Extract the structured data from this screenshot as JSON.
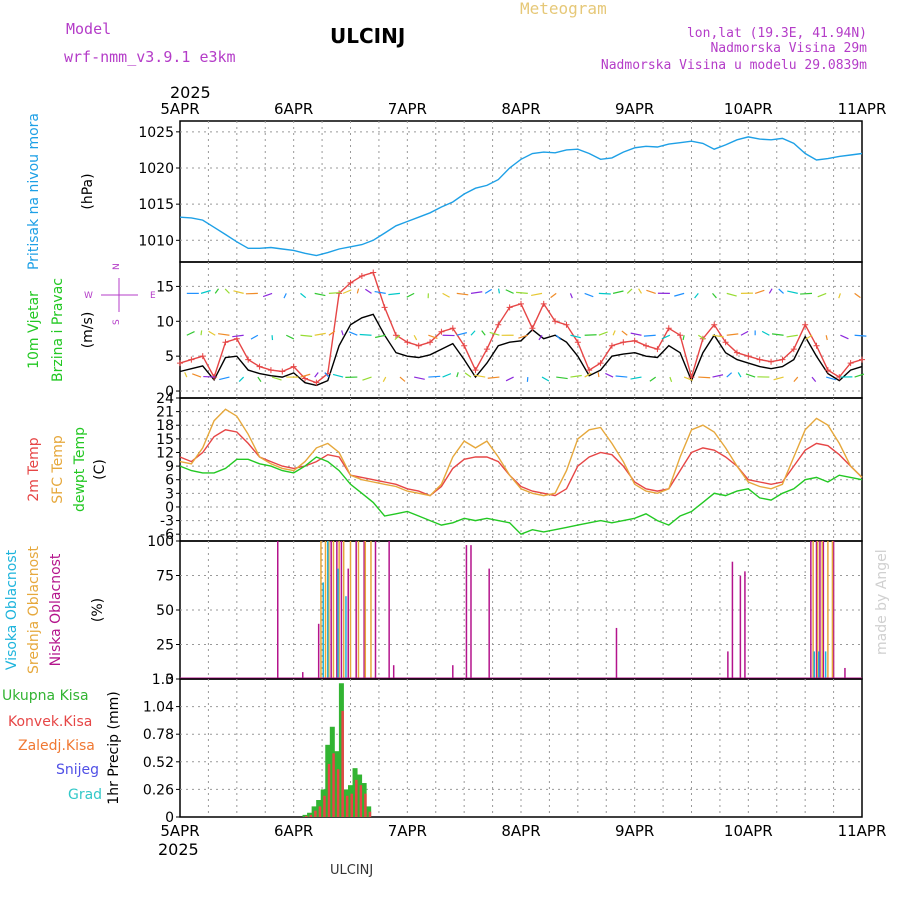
{
  "header": {
    "model_label": "Model",
    "model_name": "wrf-nmm_v3.9.1 e3km",
    "station": "ULCINJ",
    "chart_title": "Meteogram",
    "lonlat": "lon,lat (19.3E, 41.94N)",
    "elevation": "Nadmorska Visina 29m",
    "model_elevation": "Nadmorska Visina u modelu 29.0839m",
    "year": "2025",
    "footer_station": "ULCINJ",
    "credit": "made by Angel"
  },
  "colors": {
    "pressure": "#1ea0e6",
    "temp2m": "#e64646",
    "sfctemp": "#e6a83c",
    "dewpt": "#23c823",
    "wind_speed": "#000000",
    "wind_gust": "#e64646",
    "cloud_high": "#1eb4dc",
    "cloud_mid": "#e6a83c",
    "cloud_low": "#b4148c",
    "rain_total": "#32b432",
    "rain_conv": "#e64646",
    "title_gold": "#e6c878",
    "purple": "#b43cc8"
  },
  "time_axis": {
    "labels": [
      "5APR",
      "6APR",
      "7APR",
      "8APR",
      "9APR",
      "10APR",
      "11APR"
    ],
    "days": 6
  },
  "chart_data": [
    {
      "type": "line",
      "id": "pressure",
      "ylabel": [
        "Pritisak na nivou mora",
        "(hPa)"
      ],
      "yticks": [
        1010,
        1015,
        1020,
        1025
      ],
      "ylim": [
        1007,
        1026.5
      ],
      "series": [
        {
          "name": "Pressure",
          "x": [
            0,
            0.1,
            0.2,
            0.3,
            0.4,
            0.5,
            0.6,
            0.7,
            0.8,
            0.9,
            1.0,
            1.1,
            1.2,
            1.3,
            1.4,
            1.5,
            1.6,
            1.7,
            1.8,
            1.9,
            2.0,
            2.1,
            2.2,
            2.3,
            2.4,
            2.5,
            2.6,
            2.7,
            2.8,
            2.9,
            3.0,
            3.1,
            3.2,
            3.3,
            3.4,
            3.5,
            3.6,
            3.7,
            3.8,
            3.9,
            4.0,
            4.1,
            4.2,
            4.3,
            4.4,
            4.5,
            4.6,
            4.7,
            4.8,
            4.9,
            5.0,
            5.1,
            5.2,
            5.3,
            5.4,
            5.5,
            5.6,
            5.7,
            5.8,
            5.9,
            6.0
          ],
          "values": [
            1013.2,
            1013.1,
            1012.8,
            1011.8,
            1010.8,
            1009.8,
            1008.9,
            1008.9,
            1009.0,
            1008.8,
            1008.6,
            1008.2,
            1007.9,
            1008.3,
            1008.8,
            1009.1,
            1009.4,
            1010.0,
            1011.0,
            1012.0,
            1012.6,
            1013.2,
            1013.8,
            1014.6,
            1015.3,
            1016.4,
            1017.2,
            1017.6,
            1018.4,
            1020.0,
            1021.2,
            1022.0,
            1022.2,
            1022.1,
            1022.5,
            1022.6,
            1022.0,
            1021.2,
            1021.4,
            1022.2,
            1022.8,
            1023.0,
            1022.9,
            1023.3,
            1023.5,
            1023.7,
            1023.4,
            1022.6,
            1023.2,
            1023.9,
            1024.3,
            1024.0,
            1023.9,
            1024.1,
            1023.4,
            1022.0,
            1021.1,
            1021.3,
            1021.6,
            1021.8,
            1022.0
          ]
        }
      ]
    },
    {
      "type": "line",
      "id": "wind",
      "ylabel": [
        "10m Vjetar",
        "Brzina i Pravac",
        "(m/s)"
      ],
      "compass": {
        "n": "N",
        "s": "S",
        "e": "E",
        "w": "W"
      },
      "yticks": [
        0,
        5,
        10,
        15
      ],
      "ylim": [
        -1,
        18.5
      ],
      "series": [
        {
          "name": "Speed",
          "x": [
            0,
            0.1,
            0.2,
            0.3,
            0.4,
            0.5,
            0.6,
            0.7,
            0.8,
            0.9,
            1.0,
            1.1,
            1.2,
            1.3,
            1.4,
            1.5,
            1.6,
            1.7,
            1.8,
            1.9,
            2.0,
            2.1,
            2.2,
            2.3,
            2.4,
            2.5,
            2.6,
            2.7,
            2.8,
            2.9,
            3.0,
            3.1,
            3.2,
            3.3,
            3.4,
            3.5,
            3.6,
            3.7,
            3.8,
            3.9,
            4.0,
            4.1,
            4.2,
            4.3,
            4.4,
            4.5,
            4.6,
            4.7,
            4.8,
            4.9,
            5.0,
            5.1,
            5.2,
            5.3,
            5.4,
            5.5,
            5.6,
            5.7,
            5.8,
            5.9,
            6.0
          ],
          "values": [
            2.8,
            3.2,
            3.6,
            1.6,
            4.8,
            5.0,
            3.0,
            2.5,
            2.2,
            2.0,
            2.6,
            1.2,
            0.8,
            1.5,
            6.5,
            9.5,
            10.5,
            11.0,
            8.0,
            5.5,
            5.0,
            4.8,
            5.2,
            6.0,
            6.8,
            4.5,
            2.0,
            4.0,
            6.5,
            7.0,
            7.2,
            8.8,
            7.5,
            8.0,
            7.0,
            5.0,
            2.2,
            3.0,
            5.0,
            5.3,
            5.5,
            5.0,
            4.8,
            6.5,
            5.5,
            1.5,
            5.5,
            8.0,
            5.5,
            4.5,
            4.0,
            3.5,
            3.2,
            3.5,
            4.5,
            7.8,
            5.0,
            2.5,
            1.5,
            3.0,
            3.5
          ]
        },
        {
          "name": "Gust",
          "x": [
            0,
            0.1,
            0.2,
            0.3,
            0.4,
            0.5,
            0.6,
            0.7,
            0.8,
            0.9,
            1.0,
            1.1,
            1.2,
            1.3,
            1.4,
            1.5,
            1.6,
            1.7,
            1.8,
            1.9,
            2.0,
            2.1,
            2.2,
            2.3,
            2.4,
            2.5,
            2.6,
            2.7,
            2.8,
            2.9,
            3.0,
            3.1,
            3.2,
            3.3,
            3.4,
            3.5,
            3.6,
            3.7,
            3.8,
            3.9,
            4.0,
            4.1,
            4.2,
            4.3,
            4.4,
            4.5,
            4.6,
            4.7,
            4.8,
            4.9,
            5.0,
            5.1,
            5.2,
            5.3,
            5.4,
            5.5,
            5.6,
            5.7,
            5.8,
            5.9,
            6.0
          ],
          "values": [
            4.0,
            4.5,
            5.0,
            2.0,
            7.0,
            7.5,
            4.5,
            3.5,
            3.0,
            2.8,
            3.5,
            1.8,
            1.2,
            2.5,
            14.0,
            15.5,
            16.5,
            17.0,
            12.0,
            8.0,
            7.0,
            6.5,
            7.0,
            8.5,
            9.0,
            6.5,
            3.0,
            6.0,
            9.5,
            12.0,
            12.5,
            9.0,
            12.5,
            10.0,
            9.5,
            7.0,
            3.0,
            4.0,
            6.5,
            7.0,
            7.2,
            6.5,
            6.0,
            9.0,
            8.0,
            2.0,
            7.5,
            9.5,
            7.0,
            5.5,
            5.0,
            4.5,
            4.2,
            4.5,
            6.0,
            9.5,
            6.5,
            3.0,
            2.0,
            4.0,
            4.5
          ]
        }
      ]
    },
    {
      "type": "line",
      "id": "temperature",
      "ylabel": [
        "2m Temp",
        "SFC Temp",
        "dewpt Temp",
        "(C)"
      ],
      "yticks": [
        -6,
        -3,
        0,
        3,
        6,
        9,
        12,
        15,
        18,
        21,
        24
      ],
      "ylim": [
        -7.5,
        24
      ],
      "series": [
        {
          "name": "2m Temp",
          "x": [
            0,
            0.1,
            0.2,
            0.3,
            0.4,
            0.5,
            0.6,
            0.7,
            0.8,
            0.9,
            1.0,
            1.1,
            1.2,
            1.3,
            1.4,
            1.5,
            1.6,
            1.7,
            1.8,
            1.9,
            2.0,
            2.1,
            2.2,
            2.3,
            2.4,
            2.5,
            2.6,
            2.7,
            2.8,
            2.9,
            3.0,
            3.1,
            3.2,
            3.3,
            3.4,
            3.5,
            3.6,
            3.7,
            3.8,
            3.9,
            4.0,
            4.1,
            4.2,
            4.3,
            4.4,
            4.5,
            4.6,
            4.7,
            4.8,
            4.9,
            5.0,
            5.1,
            5.2,
            5.3,
            5.4,
            5.5,
            5.6,
            5.7,
            5.8,
            5.9,
            6.0
          ],
          "values": [
            11,
            10,
            12,
            15.5,
            17,
            16.5,
            14,
            11,
            10,
            9,
            8.5,
            9,
            10,
            11.5,
            11,
            7,
            6.5,
            6,
            5.5,
            5,
            4,
            3.5,
            2.5,
            4.5,
            8.5,
            10.5,
            11,
            11,
            10,
            7,
            4.5,
            3.5,
            3,
            2.5,
            4,
            9,
            11,
            12,
            11.5,
            9,
            5.5,
            4,
            3.5,
            4,
            8,
            12,
            13,
            12.5,
            11,
            9,
            6,
            5.5,
            5,
            5.5,
            9,
            12.5,
            14,
            13.5,
            11.5,
            9,
            6.5
          ]
        },
        {
          "name": "SFC Temp",
          "x": [
            0,
            0.1,
            0.2,
            0.3,
            0.4,
            0.5,
            0.6,
            0.7,
            0.8,
            0.9,
            1.0,
            1.1,
            1.2,
            1.3,
            1.4,
            1.5,
            1.6,
            1.7,
            1.8,
            1.9,
            2.0,
            2.1,
            2.2,
            2.3,
            2.4,
            2.5,
            2.6,
            2.7,
            2.8,
            2.9,
            3.0,
            3.1,
            3.2,
            3.3,
            3.4,
            3.5,
            3.6,
            3.7,
            3.8,
            3.9,
            4.0,
            4.1,
            4.2,
            4.3,
            4.4,
            4.5,
            4.6,
            4.7,
            4.8,
            4.9,
            5.0,
            5.1,
            5.2,
            5.3,
            5.4,
            5.5,
            5.6,
            5.7,
            5.8,
            5.9,
            6.0
          ],
          "values": [
            10,
            9.5,
            13,
            19,
            21.5,
            20,
            16,
            11,
            9.5,
            8.5,
            8,
            10,
            13,
            14,
            12,
            7,
            6,
            5.5,
            5,
            4.5,
            3.5,
            3,
            2.5,
            5,
            11,
            14.5,
            13,
            14.5,
            11,
            7,
            4,
            3,
            2.5,
            3,
            8,
            15,
            17,
            17.5,
            14,
            10,
            5,
            3.5,
            3,
            4,
            11,
            17,
            18,
            16.5,
            13,
            9,
            5.5,
            4.5,
            4,
            5,
            11,
            17,
            19.5,
            18,
            14,
            9,
            6.5
          ]
        },
        {
          "name": "Dewpt Temp",
          "x": [
            0,
            0.1,
            0.2,
            0.3,
            0.4,
            0.5,
            0.6,
            0.7,
            0.8,
            0.9,
            1.0,
            1.1,
            1.2,
            1.3,
            1.4,
            1.5,
            1.6,
            1.7,
            1.8,
            1.9,
            2.0,
            2.1,
            2.2,
            2.3,
            2.4,
            2.5,
            2.6,
            2.7,
            2.8,
            2.9,
            3.0,
            3.1,
            3.2,
            3.3,
            3.4,
            3.5,
            3.6,
            3.7,
            3.8,
            3.9,
            4.0,
            4.1,
            4.2,
            4.3,
            4.4,
            4.5,
            4.6,
            4.7,
            4.8,
            4.9,
            5.0,
            5.1,
            5.2,
            5.3,
            5.4,
            5.5,
            5.6,
            5.7,
            5.8,
            5.9,
            6.0
          ],
          "values": [
            9,
            8,
            7.5,
            7.5,
            8.5,
            10.5,
            10.5,
            9.5,
            9,
            8,
            7.5,
            9,
            11,
            10,
            8,
            5,
            3,
            1,
            -2,
            -1.5,
            -1,
            -2,
            -3,
            -4,
            -3.5,
            -2.5,
            -3,
            -2.5,
            -3,
            -3.5,
            -6,
            -5,
            -5.5,
            -5,
            -4.5,
            -4,
            -3.5,
            -3,
            -3.5,
            -3,
            -2.5,
            -1.5,
            -3,
            -4,
            -2,
            -1,
            1,
            3,
            2.5,
            3.5,
            4,
            2,
            1.5,
            3,
            4,
            6,
            6.5,
            5.5,
            7,
            6.5,
            6
          ]
        }
      ]
    },
    {
      "type": "bar",
      "id": "clouds",
      "ylabel": [
        "Visoka Oblacnost",
        "Srednja Oblacnost",
        "Niska Oblacnost",
        "(%)"
      ],
      "yticks": [
        0,
        25,
        50,
        75,
        100
      ],
      "ylim": [
        0,
        100
      ],
      "series": [
        {
          "name": "Niska",
          "x": [
            0.86,
            1.08,
            1.22,
            1.33,
            1.38,
            1.42,
            1.48,
            1.55,
            1.62,
            1.72,
            1.84,
            1.88,
            2.4,
            2.52,
            2.56,
            2.72,
            3.84,
            4.82,
            4.86,
            4.93,
            4.97,
            5.55,
            5.6,
            5.63,
            5.66,
            5.75,
            5.85
          ],
          "values": [
            100,
            5,
            40,
            100,
            100,
            100,
            80,
            100,
            100,
            100,
            100,
            10,
            10,
            97,
            97,
            80,
            37,
            20,
            85,
            75,
            78,
            100,
            100,
            100,
            100,
            100,
            8
          ]
        },
        {
          "name": "Srednja",
          "x": [
            1.24,
            1.28,
            1.31,
            1.35,
            1.4,
            1.44,
            1.5,
            1.57,
            1.63,
            1.68,
            5.57,
            5.61,
            5.65,
            5.7,
            5.74
          ],
          "values": [
            100,
            100,
            100,
            100,
            100,
            100,
            100,
            100,
            100,
            100,
            100,
            100,
            100,
            100,
            100
          ]
        },
        {
          "name": "Visoka",
          "x": [
            1.26,
            1.3,
            1.39,
            1.46,
            5.58,
            5.62,
            5.68
          ],
          "values": [
            70,
            100,
            80,
            60,
            20,
            20,
            20
          ]
        }
      ]
    },
    {
      "type": "bar",
      "id": "precip",
      "ylabel": [
        "1hr Precip (mm)"
      ],
      "legend": [
        "Ukupna Kisa",
        "Konvek.Kisa",
        "Zaledj.Kisa",
        "Snijeg",
        "Grad"
      ],
      "yticks": [
        0,
        0.26,
        0.52,
        0.78,
        1.04,
        1.3
      ],
      "ytick_labels": [
        "0",
        "0.26",
        "0.52",
        "0.78",
        "1.04",
        "1.3"
      ],
      "ylim": [
        0,
        1.3
      ],
      "series": [
        {
          "name": "Ukupna Kisa",
          "x": [
            1.1,
            1.14,
            1.18,
            1.22,
            1.26,
            1.3,
            1.34,
            1.38,
            1.42,
            1.46,
            1.5,
            1.54,
            1.58,
            1.62,
            1.66
          ],
          "values": [
            0.02,
            0.04,
            0.1,
            0.16,
            0.26,
            0.68,
            0.85,
            0.62,
            1.26,
            0.26,
            0.3,
            0.46,
            0.4,
            0.32,
            0.1
          ]
        },
        {
          "name": "Konvek.Kisa",
          "x": [
            1.1,
            1.14,
            1.18,
            1.22,
            1.26,
            1.3,
            1.34,
            1.38,
            1.42,
            1.46,
            1.5,
            1.54,
            1.58,
            1.62,
            1.66
          ],
          "values": [
            0.01,
            0.02,
            0.06,
            0.1,
            0.2,
            0.5,
            0.6,
            0.45,
            1.0,
            0.2,
            0.22,
            0.35,
            0.3,
            0.22,
            0.05
          ]
        }
      ]
    }
  ]
}
